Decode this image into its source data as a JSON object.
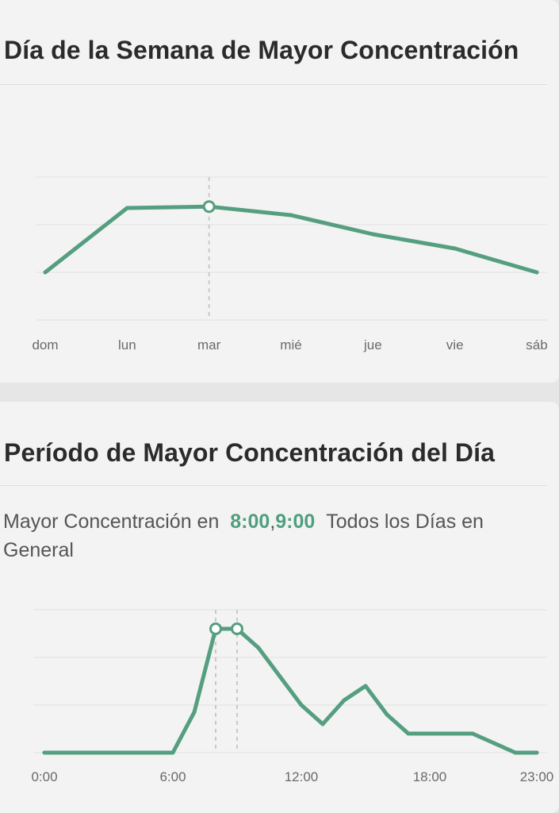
{
  "cards": [
    {
      "title": "Día de la Semana de Mayor Concentración"
    },
    {
      "title": "Período de Mayor Concentración del Día",
      "summary": {
        "prefix": "Mayor Concentración en",
        "highlight_a": "8:00",
        "separator": ",",
        "highlight_b": "9:00",
        "suffix": "Todos los Días en General"
      }
    }
  ],
  "colors": {
    "line": "#559f80",
    "grid": "#e2e2e2",
    "marker": "#c9c9c9",
    "tick": "#6a6a6a"
  },
  "chart_data": [
    {
      "type": "line",
      "title": "Día de la Semana de Mayor Concentración",
      "categories": [
        "dom",
        "lun",
        "mar",
        "mié",
        "jue",
        "vie",
        "sáb"
      ],
      "values": [
        1.0,
        2.35,
        2.38,
        2.2,
        1.8,
        1.5,
        1.0
      ],
      "ylim": [
        0,
        3
      ],
      "grid": true,
      "highlight_index": 2
    },
    {
      "type": "line",
      "title": "Período de Mayor Concentración del Día",
      "x": [
        0,
        1,
        2,
        3,
        4,
        5,
        6,
        7,
        8,
        9,
        10,
        11,
        12,
        13,
        14,
        15,
        16,
        17,
        18,
        19,
        20,
        21,
        22,
        23
      ],
      "values": [
        0,
        0,
        0,
        0,
        0,
        0,
        0,
        0.85,
        2.6,
        2.6,
        2.2,
        1.6,
        1.0,
        0.6,
        1.1,
        1.4,
        0.8,
        0.4,
        0.4,
        0.4,
        0.4,
        0.2,
        0,
        0
      ],
      "x_tick_labels": [
        {
          "x": 0,
          "label": "0:00"
        },
        {
          "x": 6,
          "label": "6:00"
        },
        {
          "x": 12,
          "label": "12:00"
        },
        {
          "x": 18,
          "label": "18:00"
        },
        {
          "x": 23,
          "label": "23:00"
        }
      ],
      "ylim": [
        0,
        3
      ],
      "grid": true,
      "highlight_x": [
        8,
        9
      ]
    }
  ]
}
